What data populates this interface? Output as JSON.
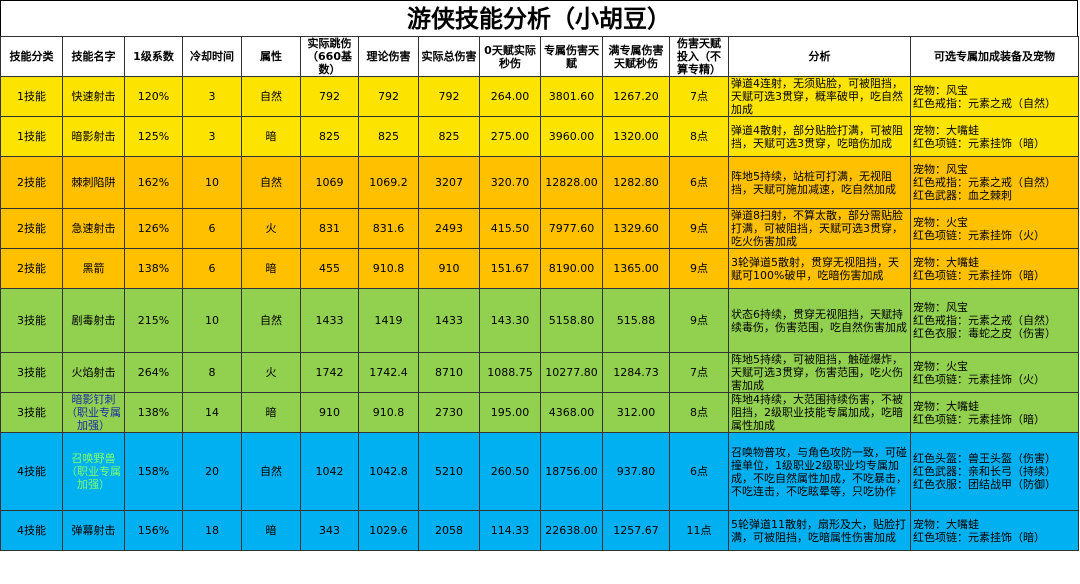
{
  "title": "游侠技能分析（小胡豆）",
  "table": {
    "headers": [
      "技能分类",
      "技能名字",
      "1级系数",
      "冷却时间",
      "属性",
      "实际跳伤（660基数）",
      "理论伤害",
      "实际总伤害",
      "0天赋实际秒伤",
      "专属伤害天赋",
      "满专属伤害天赋秒伤",
      "伤害天赋投入（不算专精）",
      "分析",
      "可选专属加成装备及宠物"
    ],
    "rows": [
      [
        "1技能",
        "快速射击",
        "120%",
        "3",
        "自然",
        "792",
        "792",
        "792",
        "264.00",
        "3801.60",
        "1267.20",
        "7点",
        "弹道4连射，无须贴脸，可被阻挡，天赋可选3贯穿，概率破甲，吃自然加成",
        [
          "宠物：风宝",
          "红色戒指：元素之戒（自然）"
        ]
      ],
      [
        "1技能",
        "暗影射击",
        "125%",
        "3",
        "暗",
        "825",
        "825",
        "825",
        "275.00",
        "3960.00",
        "1320.00",
        "8点",
        "弹道4散射，部分贴脸打满，可被阻挡，天赋可选3贯穿，吃暗伤加成",
        [
          "宠物：大嘴蛙",
          "红色项链：元素挂饰（暗）"
        ]
      ],
      [
        "2技能",
        "棘刺陷阱",
        "162%",
        "10",
        "自然",
        "1069",
        "1069.2",
        "3207",
        "320.70",
        "12828.00",
        "1282.80",
        "6点",
        "阵地5持续，站桩可打满，无视阻挡，天赋可施加减速，吃自然加成",
        [
          "宠物：风宝",
          "红色戒指：元素之戒（自然）",
          "红色武器：血之棘刺"
        ]
      ],
      [
        "2技能",
        "急速射击",
        "126%",
        "6",
        "火",
        "831",
        "831.6",
        "2493",
        "415.50",
        "7977.60",
        "1329.60",
        "9点",
        "弹道8扫射，不算太散，部分需贴脸打满，可被阻挡，天赋可选3贯穿，吃火伤害加成",
        [
          "宠物：火宝",
          "红色项链：元素挂饰（火）"
        ]
      ],
      [
        "2技能",
        "黑箭",
        "138%",
        "6",
        "暗",
        "455",
        "910.8",
        "910",
        "151.67",
        "8190.00",
        "1365.00",
        "9点",
        "3轮弹道5散射，贯穿无视阻挡，天赋可100%破甲，吃暗伤害加成",
        [
          "宠物：大嘴蛙",
          "红色项链：元素挂饰（暗）"
        ]
      ],
      [
        "3技能",
        "剧毒射击",
        "215%",
        "10",
        "自然",
        "1433",
        "1419",
        "1433",
        "143.30",
        "5158.80",
        "515.88",
        "9点",
        "状态6持续，贯穿无视阻挡，天赋持续毒伤，伤害范围，吃自然伤害加成",
        [
          "宠物：风宝",
          "红色戒指：元素之戒（自然）",
          "红色衣服：毒蛇之皮（伤害）"
        ]
      ],
      [
        "3技能",
        "火焰射击",
        "264%",
        "8",
        "火",
        "1742",
        "1742.4",
        "8710",
        "1088.75",
        "10277.80",
        "1284.73",
        "7点",
        "阵地5持续，可被阻挡，触碰爆炸，天赋可选3贯穿，伤害范围，吃火伤害加成",
        [
          "宠物：火宝",
          "红色项链：元素挂饰（火）"
        ]
      ],
      [
        "3技能",
        "暗影钉刺（职业专属加强）",
        "138%",
        "14",
        "暗",
        "910",
        "910.8",
        "2730",
        "195.00",
        "4368.00",
        "312.00",
        "8点",
        "阵地4持续，大范围持续伤害，不被阻挡，2级职业技能专属加成，吃暗属性加成",
        [
          "宠物：大嘴蛙",
          "红色项链：元素挂饰（暗）"
        ]
      ],
      [
        "4技能",
        "召唤野兽（职业专属加强）",
        "158%",
        "20",
        "自然",
        "1042",
        "1042.8",
        "5210",
        "260.50",
        "18756.00",
        "937.80",
        "6点",
        "召唤物普攻，与角色攻防一致，可碰撞单位，1级职业2级职业均专属加成，不吃自然属性加成，不吃暴击，不吃连击，不吃眩晕等，只吃协作",
        [
          "红色头盔：兽王头盔（伤害）",
          "红色武器：亲和长弓（持续）",
          "红色衣服：团结战甲（防御）"
        ]
      ],
      [
        "4技能",
        "弹幕射击",
        "156%",
        "18",
        "暗",
        "343",
        "1029.6",
        "2058",
        "114.33",
        "22638.00",
        "1257.67",
        "11点",
        "5轮弹道11散射，扇形及大，贴脸打满，可被阻挡，吃暗属性伤害加成",
        [
          "宠物：大嘴蛙",
          "红色项链：元素挂饰（暗）"
        ]
      ]
    ]
  }
}
